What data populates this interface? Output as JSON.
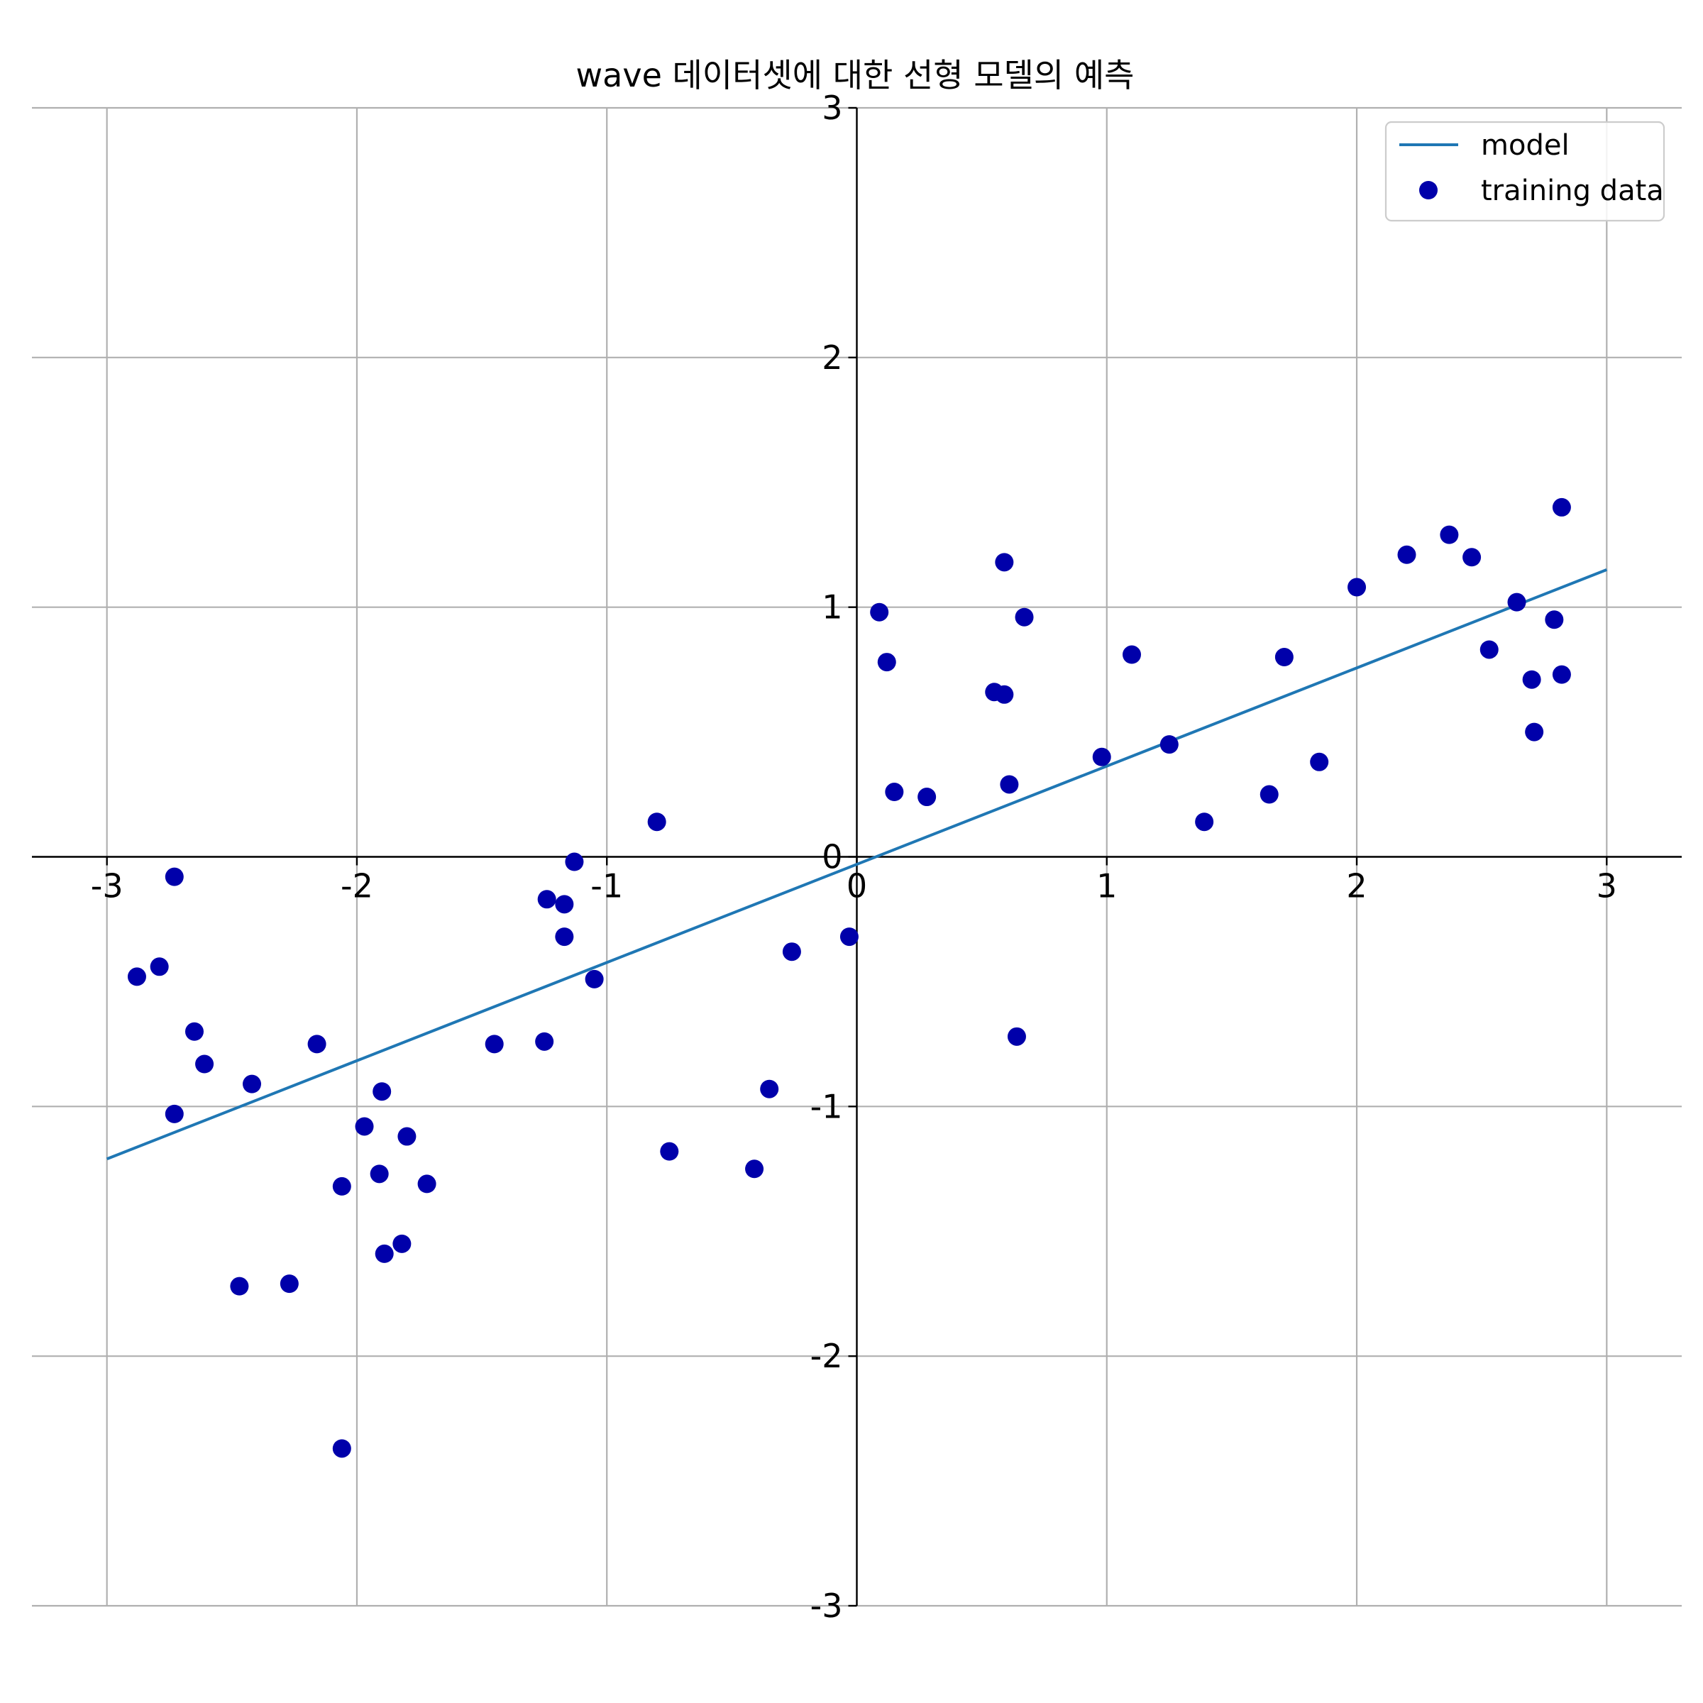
{
  "chart_data": {
    "type": "scatter",
    "title": "wave 데이터셋에 대한 선형 모델의 예측",
    "xlabel": "",
    "ylabel": "",
    "xlim": [
      -3.3,
      3.3
    ],
    "ylim": [
      -3,
      3
    ],
    "xticks": [
      -3,
      -2,
      -1,
      0,
      1,
      2,
      3
    ],
    "yticks": [
      -3,
      -2,
      -1,
      0,
      1,
      2,
      3
    ],
    "xtick_labels": [
      "-3",
      "-2",
      "-1",
      "0",
      "1",
      "2",
      "3"
    ],
    "ytick_labels": [
      "-3",
      "-2",
      "-1",
      "",
      "1",
      "2",
      "3"
    ],
    "origin_label": "0",
    "grid": true,
    "spines": "centered",
    "legend": {
      "position": "top-right",
      "entries": [
        {
          "label": "model",
          "marker": "line",
          "color": "#1f77b4"
        },
        {
          "label": "training data",
          "marker": "circle",
          "color": "#0000aa"
        }
      ]
    },
    "series": [
      {
        "name": "model",
        "kind": "line",
        "color": "#1f77b4",
        "x": [
          -3,
          3
        ],
        "y": [
          -1.21,
          1.15
        ]
      },
      {
        "name": "training data",
        "kind": "scatter",
        "color": "#0000aa",
        "points": [
          [
            -2.88,
            -0.48
          ],
          [
            -2.79,
            -0.44
          ],
          [
            -2.73,
            -0.08
          ],
          [
            -2.73,
            -1.03
          ],
          [
            -2.65,
            -0.7
          ],
          [
            -2.61,
            -0.83
          ],
          [
            -2.42,
            -0.91
          ],
          [
            -2.47,
            -1.72
          ],
          [
            -2.27,
            -1.71
          ],
          [
            -2.16,
            -0.75
          ],
          [
            -2.06,
            -1.32
          ],
          [
            -2.06,
            -2.37
          ],
          [
            -1.97,
            -1.08
          ],
          [
            -1.91,
            -1.27
          ],
          [
            -1.9,
            -0.94
          ],
          [
            -1.89,
            -1.59
          ],
          [
            -1.82,
            -1.55
          ],
          [
            -1.8,
            -1.12
          ],
          [
            -1.72,
            -1.31
          ],
          [
            -1.45,
            -0.75
          ],
          [
            -1.25,
            -0.74
          ],
          [
            -1.24,
            -0.17
          ],
          [
            -1.17,
            -0.19
          ],
          [
            -1.17,
            -0.32
          ],
          [
            -1.13,
            -0.02
          ],
          [
            -1.05,
            -0.49
          ],
          [
            -0.8,
            0.14
          ],
          [
            -0.75,
            -1.18
          ],
          [
            -0.41,
            -1.25
          ],
          [
            -0.35,
            -0.93
          ],
          [
            -0.26,
            -0.38
          ],
          [
            -0.03,
            -0.32
          ],
          [
            0.09,
            0.98
          ],
          [
            0.12,
            0.78
          ],
          [
            0.15,
            0.26
          ],
          [
            0.28,
            0.24
          ],
          [
            0.55,
            0.66
          ],
          [
            0.59,
            0.65
          ],
          [
            0.59,
            1.18
          ],
          [
            0.61,
            0.29
          ],
          [
            0.64,
            -0.72
          ],
          [
            0.67,
            0.96
          ],
          [
            0.98,
            0.4
          ],
          [
            1.1,
            0.81
          ],
          [
            1.25,
            0.45
          ],
          [
            1.39,
            0.14
          ],
          [
            1.65,
            0.25
          ],
          [
            1.71,
            0.8
          ],
          [
            1.85,
            0.38
          ],
          [
            2.0,
            1.08
          ],
          [
            2.2,
            1.21
          ],
          [
            2.37,
            1.29
          ],
          [
            2.46,
            1.2
          ],
          [
            2.53,
            0.83
          ],
          [
            2.64,
            1.02
          ],
          [
            2.7,
            0.71
          ],
          [
            2.71,
            0.5
          ],
          [
            2.79,
            0.95
          ],
          [
            2.82,
            0.73
          ],
          [
            2.82,
            1.4
          ]
        ]
      }
    ]
  }
}
